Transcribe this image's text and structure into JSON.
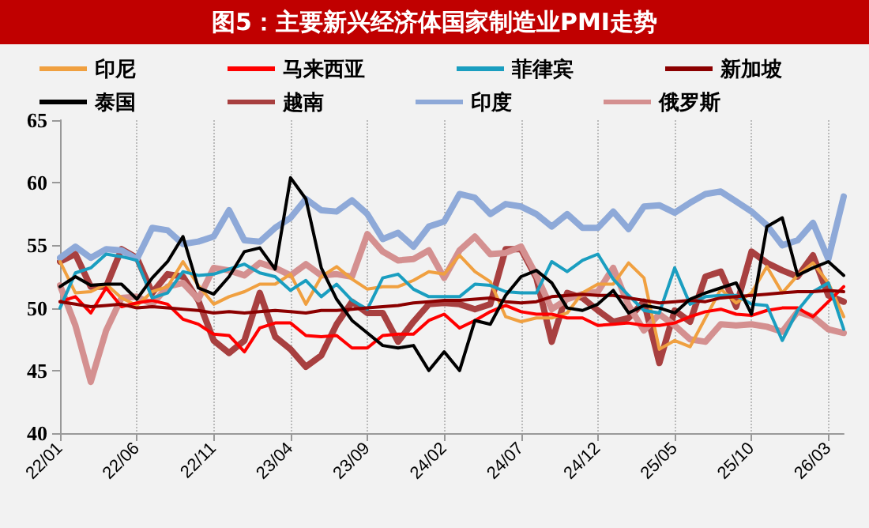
{
  "chart_data": {
    "type": "line",
    "title": "图5：主要新兴经济体国家制造业PMI走势",
    "categories": [
      "22/01",
      null,
      null,
      null,
      null,
      "22/06",
      null,
      null,
      null,
      null,
      "22/11",
      null,
      null,
      null,
      null,
      "23/04",
      null,
      null,
      null,
      null,
      "23/09",
      null,
      null,
      null,
      null,
      "24/02",
      null,
      null,
      null,
      null,
      "24/07",
      null,
      null,
      null,
      null,
      "24/12",
      null,
      null,
      null,
      null,
      "25/05",
      null,
      null,
      null,
      null,
      "25/10",
      null,
      null,
      null,
      null,
      "26/03",
      null
    ],
    "series": [
      {
        "name": "印尼",
        "color": "#f0a040",
        "values": [
          53.7,
          51.2,
          51.3,
          51.9,
          50.8,
          50.2,
          51.3,
          51.7,
          53.7,
          51.8,
          50.3,
          50.9,
          51.3,
          51.9,
          51.9,
          52.7,
          50.3,
          52.5,
          53.3,
          52.3,
          51.5,
          51.7,
          51.7,
          52.2,
          52.9,
          52.7,
          54.2,
          52.9,
          52.1,
          49.3,
          48.9,
          49.2,
          49.2,
          49.6,
          51.2,
          51.9,
          51.9,
          53.6,
          52.4,
          46.7,
          47.4,
          46.9,
          49.2,
          51.5,
          50.4,
          51.2,
          53.3,
          51.2,
          52.6,
          53.6,
          52.0,
          49.3
        ]
      },
      {
        "name": "马来西亚",
        "color": "#ff0000",
        "values": [
          50.5,
          50.9,
          49.6,
          51.6,
          50.1,
          50.4,
          50.6,
          50.3,
          49.1,
          48.7,
          47.9,
          47.8,
          46.5,
          48.4,
          48.8,
          48.8,
          47.8,
          47.7,
          47.8,
          46.8,
          46.8,
          47.8,
          47.9,
          47.9,
          49.0,
          49.5,
          48.4,
          49.0,
          49.7,
          50.2,
          49.7,
          49.5,
          49.5,
          49.2,
          49.2,
          48.6,
          48.7,
          48.8,
          48.6,
          48.6,
          48.8,
          49.3,
          49.7,
          49.9,
          49.5,
          49.4,
          49.8,
          50.0,
          50.0,
          49.3,
          50.5,
          51.7
        ]
      },
      {
        "name": "菲律宾",
        "color": "#1a9ec0",
        "values": [
          50.0,
          52.8,
          53.2,
          54.3,
          54.1,
          53.8,
          50.8,
          51.2,
          52.9,
          52.6,
          52.7,
          53.1,
          53.5,
          52.8,
          52.5,
          51.4,
          52.2,
          50.9,
          51.9,
          50.6,
          49.9,
          52.4,
          52.7,
          51.5,
          50.9,
          50.9,
          50.9,
          51.9,
          51.8,
          51.3,
          51.2,
          51.2,
          53.7,
          52.9,
          53.8,
          54.3,
          52.3,
          51.0,
          49.8,
          49.6,
          53.2,
          50.3,
          50.9,
          51.0,
          51.0,
          50.3,
          50.2,
          47.4,
          49.8,
          51.3,
          52.0,
          48.3
        ]
      },
      {
        "name": "新加坡",
        "color": "#8b0000",
        "values": [
          50.5,
          50.3,
          50.1,
          50.2,
          50.3,
          50.0,
          50.1,
          50.0,
          49.9,
          49.8,
          49.6,
          49.7,
          49.6,
          49.7,
          49.8,
          49.7,
          49.6,
          49.8,
          49.8,
          49.9,
          50.0,
          50.1,
          50.2,
          50.4,
          50.5,
          50.6,
          50.6,
          50.7,
          50.8,
          50.5,
          50.4,
          50.5,
          50.9,
          51.0,
          51.1,
          51.0,
          51.0,
          50.8,
          50.6,
          50.4,
          50.5,
          50.6,
          50.5,
          50.8,
          50.9,
          51.0,
          51.1,
          51.2,
          51.3,
          51.3,
          51.4,
          51.3
        ]
      },
      {
        "name": "泰国",
        "color": "#000000",
        "values": [
          51.7,
          52.5,
          51.8,
          51.9,
          51.9,
          50.7,
          52.4,
          53.7,
          55.7,
          51.6,
          51.1,
          52.5,
          54.5,
          54.8,
          53.1,
          60.4,
          58.7,
          53.2,
          50.7,
          49.0,
          48.0,
          47.0,
          46.8,
          47.0,
          45.0,
          46.5,
          45.0,
          49.0,
          48.7,
          51.0,
          52.5,
          53.0,
          52.0,
          50.0,
          49.8,
          50.3,
          51.4,
          49.6,
          50.2,
          50.0,
          49.6,
          50.7,
          51.2,
          51.6,
          52.0,
          49.5,
          56.5,
          57.2,
          52.6,
          53.2,
          53.7,
          52.6
        ]
      },
      {
        "name": "越南",
        "color": "#a84040",
        "values": [
          53.7,
          54.3,
          51.7,
          51.7,
          54.7,
          54.0,
          51.2,
          52.7,
          52.5,
          50.6,
          47.4,
          46.4,
          47.4,
          51.2,
          47.7,
          46.7,
          45.3,
          46.2,
          48.7,
          50.5,
          49.6,
          49.6,
          47.3,
          48.9,
          50.3,
          50.4,
          50.3,
          49.9,
          50.3,
          54.7,
          54.7,
          52.4,
          47.3,
          51.2,
          50.8,
          49.8,
          48.9,
          49.2,
          50.5,
          45.6,
          49.8,
          48.9,
          52.5,
          52.9,
          50.1,
          54.5,
          53.6,
          53.0,
          52.5,
          54.2,
          51.0,
          50.5
        ]
      },
      {
        "name": "印度",
        "color": "#8ea9d8",
        "values": [
          54.0,
          54.9,
          54.0,
          54.7,
          54.6,
          53.9,
          56.4,
          56.2,
          55.1,
          55.3,
          55.7,
          57.8,
          55.4,
          55.3,
          56.4,
          57.2,
          58.7,
          57.8,
          57.7,
          58.6,
          57.5,
          55.5,
          56.0,
          54.9,
          56.5,
          56.9,
          59.1,
          58.8,
          57.5,
          58.3,
          58.1,
          57.5,
          56.5,
          57.5,
          56.4,
          56.4,
          57.7,
          56.3,
          58.1,
          58.2,
          57.6,
          58.4,
          59.1,
          59.3,
          58.5,
          57.7,
          56.6,
          55.0,
          55.4,
          56.8,
          53.9,
          58.9
        ]
      },
      {
        "name": "俄罗斯",
        "color": "#d49090",
        "values": [
          51.8,
          48.6,
          44.1,
          48.2,
          50.8,
          50.9,
          50.3,
          51.7,
          52.0,
          50.7,
          53.2,
          53.0,
          52.6,
          53.6,
          53.2,
          52.6,
          53.5,
          52.6,
          52.7,
          52.5,
          55.9,
          54.5,
          53.8,
          53.9,
          54.6,
          52.4,
          54.6,
          55.7,
          54.3,
          54.4,
          54.9,
          52.6,
          49.9,
          50.7,
          51.1,
          51.3,
          53.2,
          50.2,
          48.2,
          49.5,
          48.6,
          47.5,
          47.3,
          48.7,
          48.6,
          48.7,
          48.5,
          48.1,
          49.7,
          49.3,
          48.3,
          48.0
        ]
      }
    ],
    "ylim": [
      40,
      65
    ],
    "yticks": [
      40,
      45,
      50,
      55,
      60,
      65
    ],
    "grid": "x",
    "legend": "top",
    "marker": "none",
    "line_style": "solid"
  }
}
